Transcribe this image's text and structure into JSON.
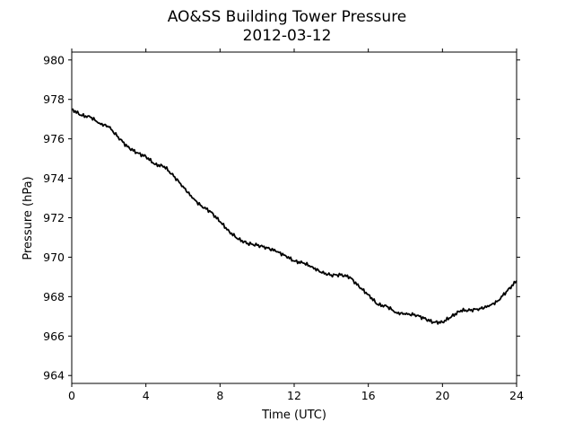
{
  "chart_data": {
    "type": "line",
    "title": "AO&SS Building Tower Pressure",
    "subtitle": "2012-03-12",
    "xlabel": "Time (UTC)",
    "ylabel": "Pressure (hPa)",
    "xlim": [
      0,
      24
    ],
    "ylim": [
      963.6,
      980.4
    ],
    "x_ticks": [
      0,
      4,
      8,
      12,
      16,
      20,
      24
    ],
    "y_ticks": [
      964,
      966,
      968,
      970,
      972,
      974,
      976,
      978,
      980
    ],
    "grid": false,
    "legend": "none",
    "series": [
      {
        "color": "#000000",
        "x": [
          0,
          0.5,
          1.0,
          1.5,
          2.0,
          2.5,
          3.0,
          3.5,
          4.0,
          4.5,
          5.0,
          5.5,
          6.0,
          6.5,
          7.0,
          7.5,
          8.0,
          8.5,
          9.0,
          9.5,
          10.0,
          10.5,
          11.0,
          11.5,
          12.0,
          12.5,
          13.0,
          13.5,
          14.0,
          14.5,
          15.0,
          15.5,
          16.0,
          16.5,
          17.0,
          17.5,
          18.0,
          18.5,
          19.0,
          19.5,
          20.0,
          20.5,
          21.0,
          21.5,
          22.0,
          22.5,
          23.0,
          23.5,
          24.0
        ],
        "y": [
          977.5,
          977.2,
          977.1,
          976.8,
          976.6,
          976.1,
          975.6,
          975.3,
          975.1,
          974.7,
          974.6,
          974.1,
          973.6,
          973.0,
          972.6,
          972.3,
          971.8,
          971.3,
          970.9,
          970.7,
          970.6,
          970.5,
          970.3,
          970.1,
          969.8,
          969.7,
          969.5,
          969.2,
          969.1,
          969.1,
          969.0,
          968.5,
          968.1,
          967.6,
          967.5,
          967.2,
          967.1,
          967.1,
          966.9,
          966.7,
          966.7,
          967.0,
          967.3,
          967.3,
          967.4,
          967.5,
          967.8,
          968.3,
          968.8
        ]
      }
    ]
  }
}
